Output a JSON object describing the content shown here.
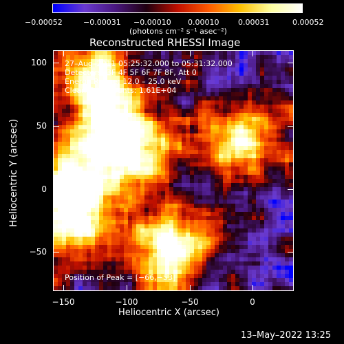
{
  "colorbar": {
    "ticks": [
      "−0.00052",
      "−0.00031",
      "−0.00010",
      "0.00010",
      "0.00031",
      "0.00052"
    ],
    "units": "(photons cm⁻² s⁻¹ asec⁻²)",
    "colors": [
      "#0000ff",
      "#6a3bd1",
      "#4a1880",
      "#200010",
      "#c01000",
      "#ff5a00",
      "#ffc000",
      "#ffffa0",
      "#ffffff"
    ]
  },
  "chart_data": {
    "type": "heatmap",
    "title": "Reconstructed RHESSI Image",
    "xlabel": "Heliocentric X (arcsec)",
    "ylabel": "Heliocentric Y (arcsec)",
    "xlim": [
      -162,
      32
    ],
    "ylim": [
      -84,
      110
    ],
    "x_ticks": [
      -150,
      -100,
      -50,
      0
    ],
    "y_ticks": [
      100,
      50,
      0,
      -50
    ],
    "x_tick_labels": [
      "−150",
      "−100",
      "−50",
      "0"
    ],
    "y_tick_labels": [
      "100",
      "50",
      "0",
      "−50"
    ],
    "value_range": [
      -0.00052,
      0.00052
    ],
    "peak": [
      -66,
      -53
    ],
    "bright_regions": [
      {
        "x": -120,
        "y": 60,
        "level": 0.8
      },
      {
        "x": -95,
        "y": 30,
        "level": 0.9
      },
      {
        "x": -140,
        "y": 10,
        "level": 0.85
      },
      {
        "x": -150,
        "y": -30,
        "level": 0.9
      },
      {
        "x": -66,
        "y": -53,
        "level": 1.0
      },
      {
        "x": -130,
        "y": 95,
        "level": 0.6
      },
      {
        "x": -20,
        "y": 30,
        "level": 0.55
      },
      {
        "x": 5,
        "y": 45,
        "level": 0.55
      }
    ],
    "annotations": [
      "27–Aug–2011 05:25:32.000 to 05:31:32.000",
      "Detectors: 3F 4F 5F 6F 7F 8F, Att 0",
      "Energy Range: 12.0 – 25.0 keV",
      "Clean     Total counts: 1.61E+04"
    ],
    "peak_label": "Position of Peak = [−66,−53]"
  },
  "footer": {
    "timestamp": "13–May–2022 13:25"
  }
}
